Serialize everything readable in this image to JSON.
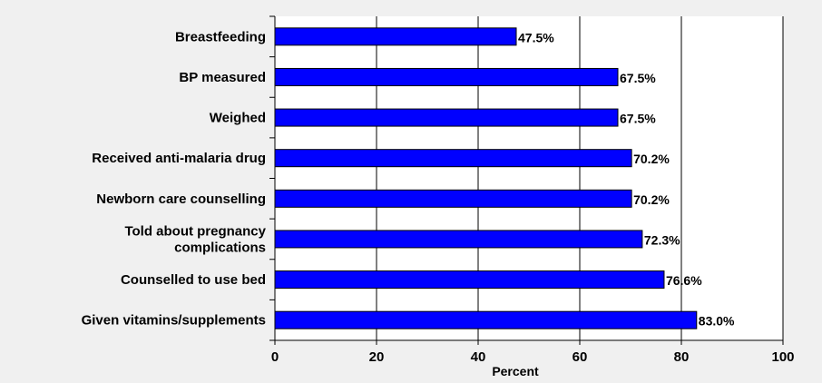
{
  "chart_data": {
    "type": "bar",
    "orientation": "horizontal",
    "categories": [
      "Breastfeeding",
      "BP measured",
      "Weighed",
      "Received anti-malaria drug",
      "Newborn care counselling",
      "Told about pregnancy complications",
      "Counselled to use bed",
      "Given vitamins/supplements"
    ],
    "category_lines": [
      [
        "Breastfeeding"
      ],
      [
        "BP measured"
      ],
      [
        "Weighed"
      ],
      [
        "Received anti-malaria drug"
      ],
      [
        "Newborn care counselling"
      ],
      [
        "Told about pregnancy",
        "complications"
      ],
      [
        "Counselled to use bed"
      ],
      [
        "Given vitamins/supplements"
      ]
    ],
    "values": [
      47.5,
      67.5,
      67.5,
      70.2,
      70.2,
      72.3,
      76.6,
      83.0
    ],
    "data_labels": [
      "47.5%",
      "67.5%",
      "67.5%",
      "70.2%",
      "70.2%",
      "72.3%",
      "76.6%",
      "83.0%"
    ],
    "xlabel": "Percent",
    "xlim": [
      0,
      100
    ],
    "xticks": [
      0,
      20,
      40,
      60,
      80,
      100
    ],
    "tick_labels": [
      "0",
      "20",
      "40",
      "60",
      "80",
      "100"
    ],
    "grid": "vertical",
    "bar_color": "#0000ff",
    "plot_background": "#ffffff",
    "page_background": "#f0f0f0"
  }
}
